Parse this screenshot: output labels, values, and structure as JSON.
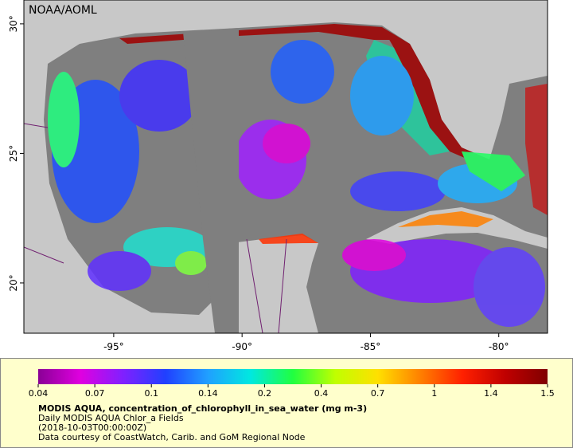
{
  "map": {
    "label": "NOAA/AOML",
    "xlim": [
      -98.5,
      -78.1
    ],
    "ylim": [
      18.06,
      30.92
    ],
    "lat_ticks": [
      {
        "value": 30,
        "label": "30°"
      },
      {
        "value": 25,
        "label": "25°"
      },
      {
        "value": 20,
        "label": "20°"
      }
    ],
    "lon_ticks": [
      {
        "value": -95,
        "label": "-95°"
      },
      {
        "value": -90,
        "label": "-90°"
      },
      {
        "value": -85,
        "label": "-85°"
      },
      {
        "value": -80,
        "label": "-80°"
      }
    ]
  },
  "colorbar": {
    "ticks": [
      0.04,
      0.07,
      0.1,
      0.14,
      0.2,
      0.4,
      0.7,
      1,
      1.4,
      1.5
    ],
    "colors": [
      "#8a0096",
      "#e000e0",
      "#8020ff",
      "#2040ff",
      "#20a0ff",
      "#00e8e0",
      "#20ff40",
      "#c0ff00",
      "#ffe000",
      "#ff8000",
      "#ff2000",
      "#c00000",
      "#800000"
    ]
  },
  "caption": {
    "title": "MODIS AQUA, concentration_of_chlorophyll_in_sea_water (mg m-3)",
    "lines": [
      "Daily MODIS AQUA Chlor_a Fields",
      "(2018-10-03T00:00:00Z)",
      "Data courtesy of CoastWatch, Carib. and GoM Regional Node"
    ]
  }
}
